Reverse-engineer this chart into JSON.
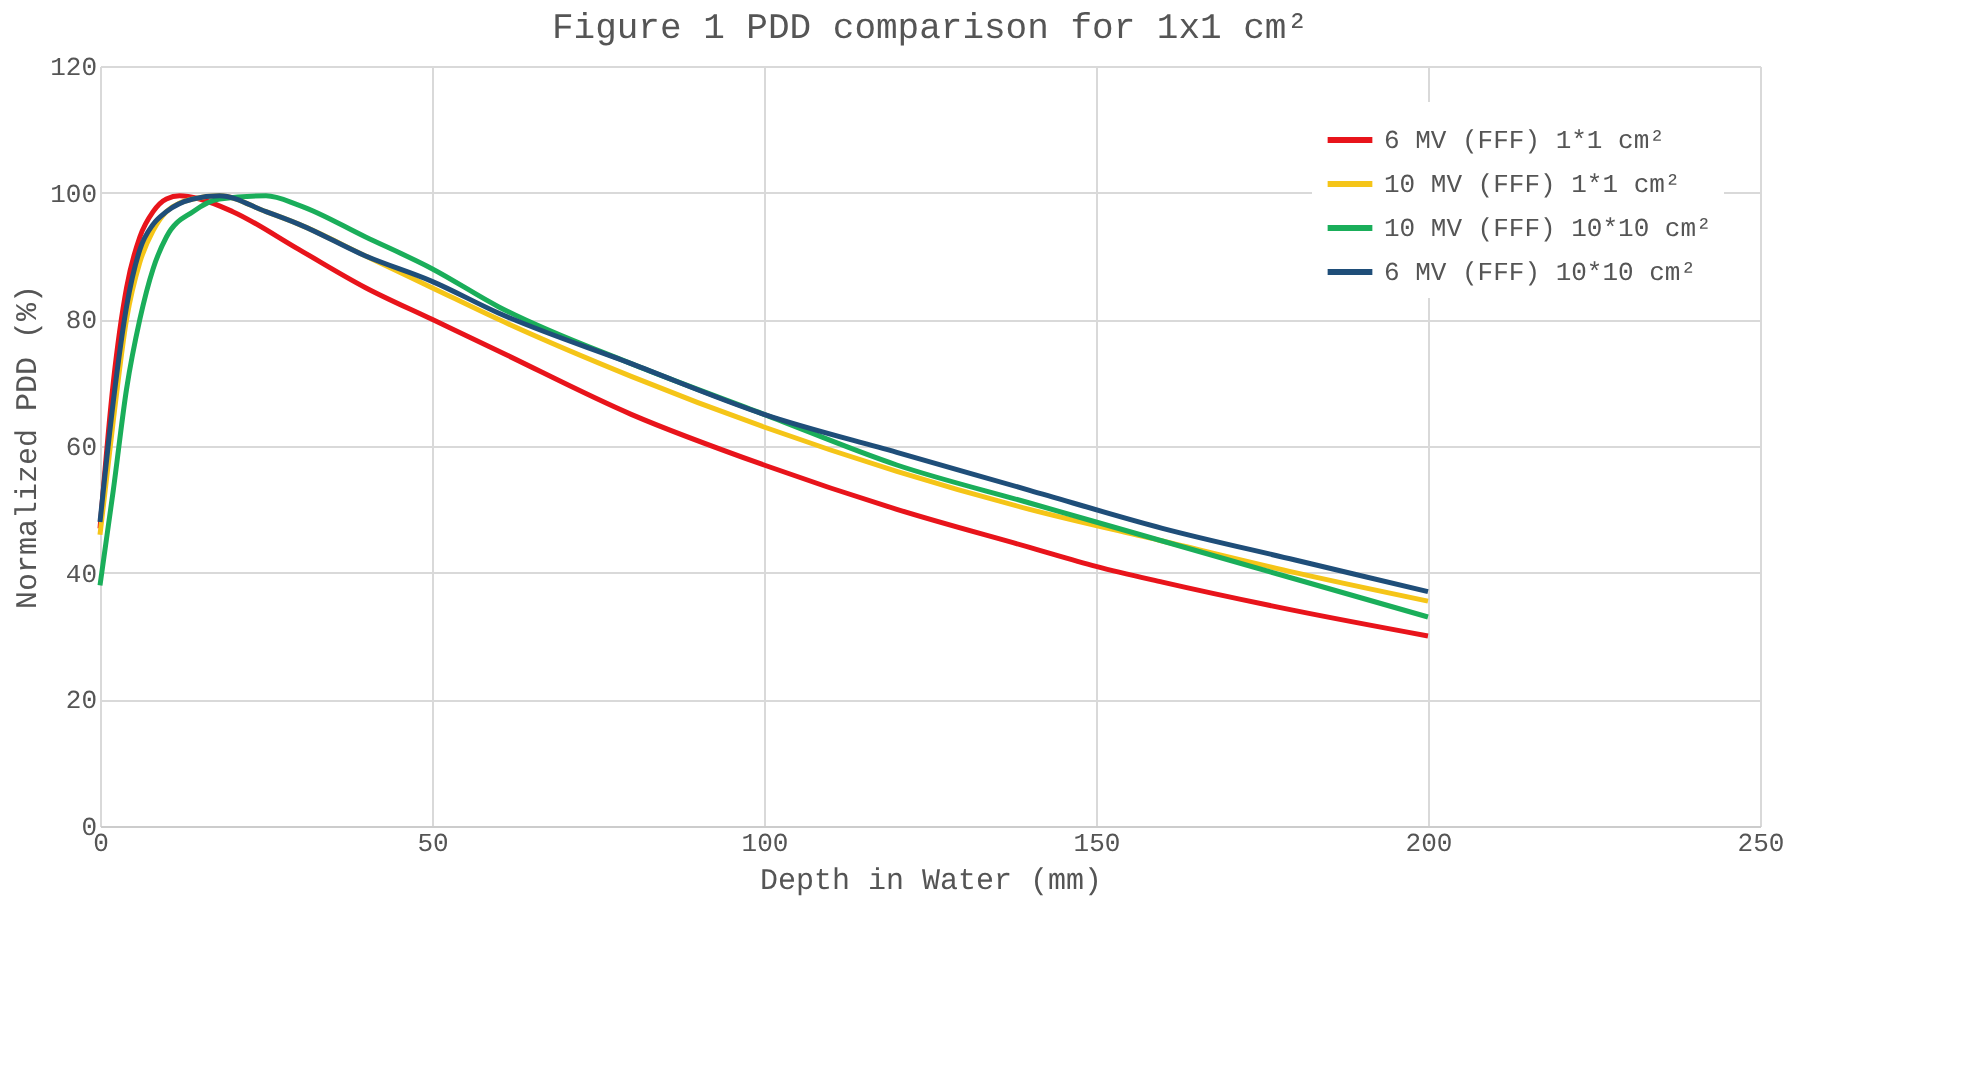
{
  "chart_data": {
    "type": "line",
    "title": "Figure 1 PDD comparison for 1x1 cm²",
    "xlabel": "Depth in Water (mm)",
    "ylabel": "Normalized PDD (%)",
    "xlim": [
      0,
      250
    ],
    "xticks": [
      0,
      50,
      100,
      150,
      200,
      250
    ],
    "ylim": [
      0,
      120
    ],
    "yticks": [
      0,
      20,
      40,
      60,
      80,
      100,
      120
    ],
    "grid": true,
    "legend": "top right",
    "marker": "none",
    "line_style": "solid",
    "series": [
      {
        "name": "6 MV (FFF) 1*1 cm²",
        "color": "#e8141b",
        "x": [
          0,
          2,
          4,
          6,
          8,
          10,
          12,
          15,
          20,
          30,
          40,
          50,
          60,
          80,
          100,
          120,
          140,
          150,
          160,
          180,
          200
        ],
        "values": [
          47,
          70,
          85,
          93,
          97,
          99,
          99.5,
          99,
          97,
          91,
          85,
          80,
          75,
          65,
          57,
          50,
          44,
          41,
          38.5,
          34,
          30
        ]
      },
      {
        "name": "10 MV (FFF) 1*1 cm²",
        "color": "#f5c518",
        "x": [
          0,
          2,
          4,
          6,
          8,
          10,
          14,
          18,
          25,
          30,
          40,
          50,
          60,
          80,
          100,
          120,
          140,
          160,
          180,
          200
        ],
        "values": [
          46,
          64,
          80,
          89,
          94,
          97,
          99,
          99.5,
          97,
          95,
          90,
          85,
          80,
          71,
          63,
          56,
          50,
          45,
          40,
          35.5
        ]
      },
      {
        "name": "10 MV (FFF) 10*10 cm²",
        "color": "#1aae5a",
        "x": [
          0,
          2,
          4,
          6,
          8,
          10,
          14,
          18,
          25,
          30,
          40,
          50,
          60,
          80,
          100,
          120,
          140,
          160,
          180,
          200
        ],
        "values": [
          38,
          53,
          69,
          80,
          88,
          93,
          97,
          99,
          99.5,
          98,
          93,
          88,
          82,
          73,
          65,
          57,
          51,
          45,
          39,
          33
        ]
      },
      {
        "name": "6 MV (FFF) 10*10 cm²",
        "color": "#1f4e79",
        "x": [
          0,
          2,
          4,
          6,
          8,
          10,
          14,
          18,
          25,
          30,
          40,
          50,
          60,
          80,
          100,
          120,
          140,
          160,
          180,
          200
        ],
        "values": [
          48,
          67,
          82,
          91,
          95,
          97,
          99,
          99.5,
          97,
          95,
          90,
          86,
          81,
          73,
          65,
          59,
          53,
          47,
          42,
          37
        ]
      }
    ]
  }
}
